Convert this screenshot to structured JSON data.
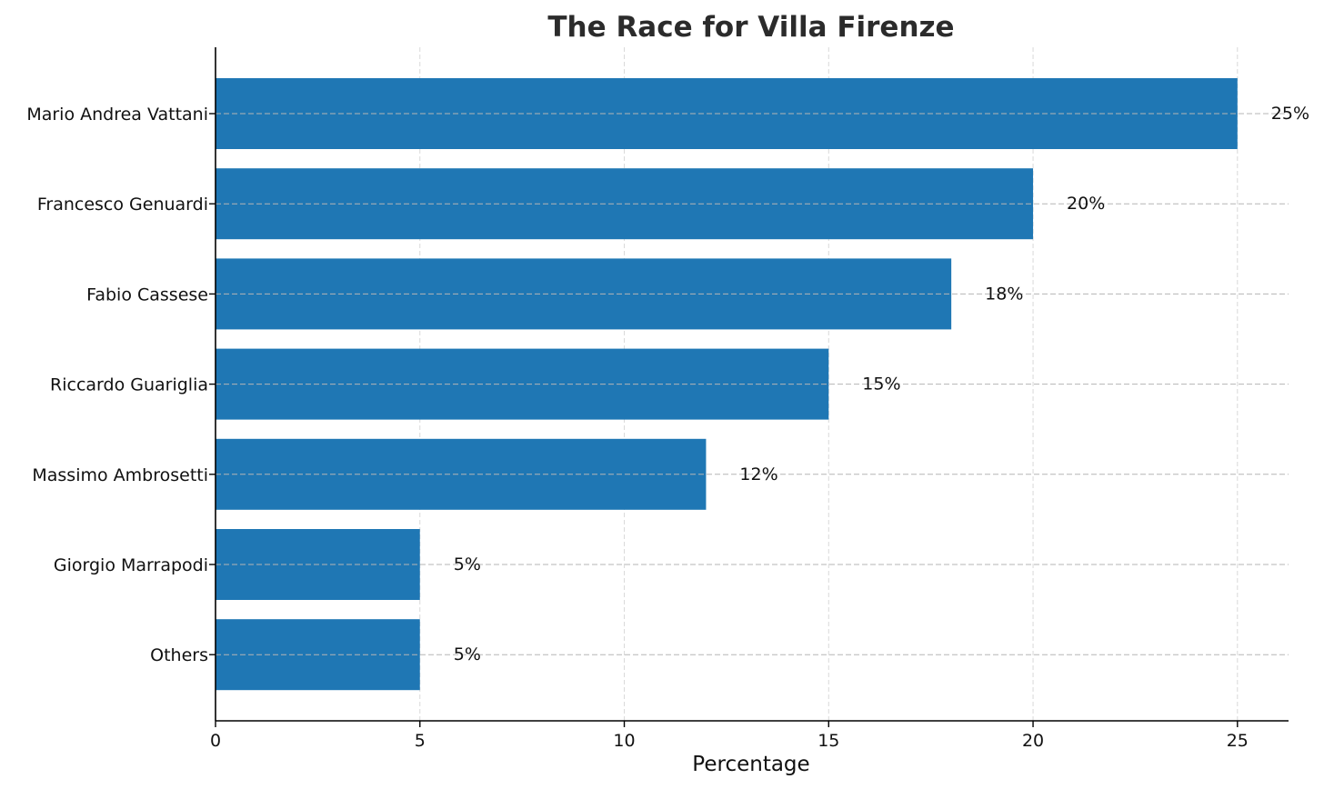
{
  "chart_data": {
    "type": "bar",
    "orientation": "horizontal",
    "title": "The Race for Villa Firenze",
    "xlabel": "Percentage",
    "ylabel": "",
    "categories": [
      "Mario Andrea Vattani",
      "Francesco Genuardi",
      "Fabio Cassese",
      "Riccardo Guariglia",
      "Massimo Ambrosetti",
      "Giorgio Marrapodi",
      "Others"
    ],
    "values": [
      25,
      20,
      18,
      15,
      12,
      5,
      5
    ],
    "data_labels": [
      "25%",
      "20%",
      "18%",
      "15%",
      "12%",
      "5%",
      "5%"
    ],
    "xlim": [
      0,
      26.25
    ],
    "x_ticks": [
      0,
      5,
      10,
      15,
      20,
      25
    ],
    "x_tick_labels": [
      "0",
      "5",
      "10",
      "15",
      "20",
      "25"
    ],
    "grid": true,
    "bar_color": "#1f77b4"
  }
}
